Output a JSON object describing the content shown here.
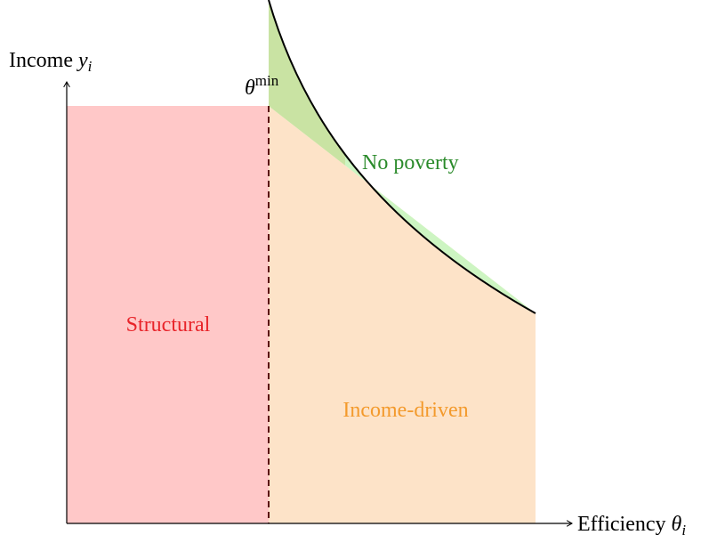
{
  "axes": {
    "y_label": {
      "text": "Income",
      "var": "y",
      "sub": "i"
    },
    "x_label": {
      "text": "Efficiency",
      "var": "θ",
      "sub": "i"
    }
  },
  "threshold": {
    "var": "θ",
    "sup": "min"
  },
  "regions": {
    "structural": "Structural",
    "income_driven": "Income-driven",
    "no_poverty": "No poverty"
  }
}
